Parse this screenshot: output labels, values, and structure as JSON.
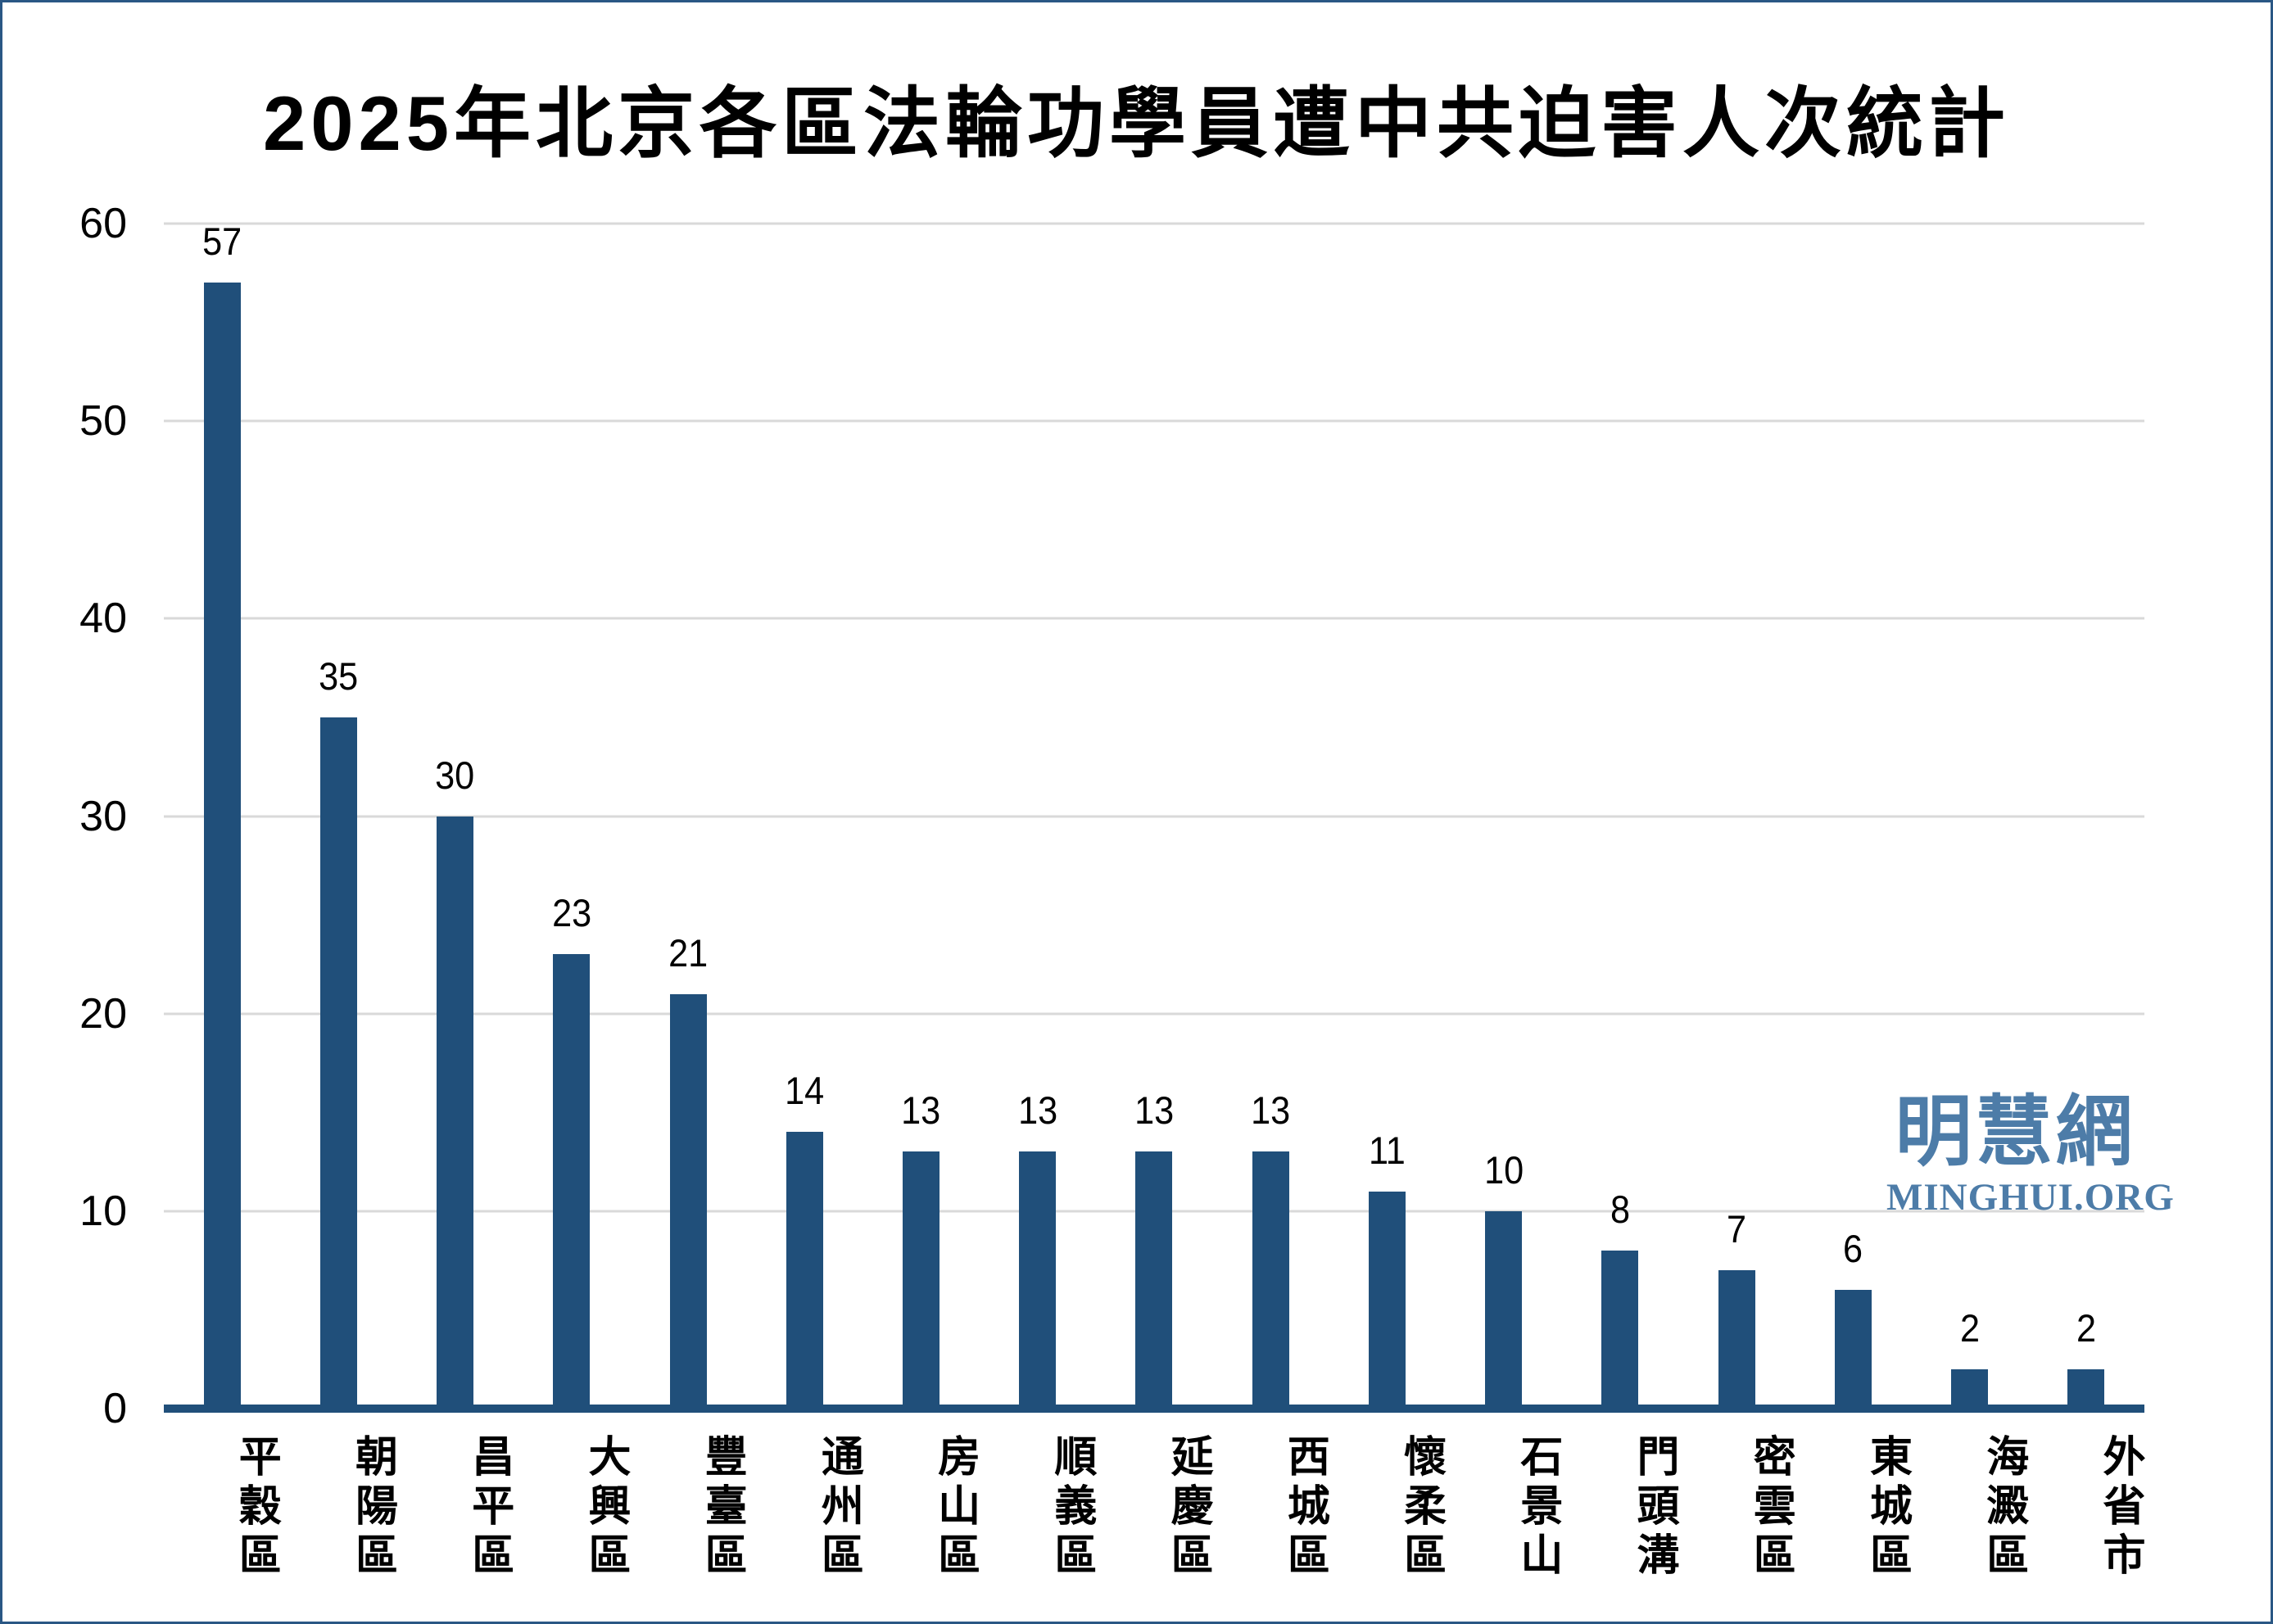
{
  "chart_data": {
    "type": "bar",
    "title": "2025年北京各區法輪功學員遭中共迫害人次統計",
    "categories": [
      "平穀區",
      "朝陽區",
      "昌平區",
      "大興區",
      "豐臺區",
      "通州區",
      "房山區",
      "順義區",
      "延慶區",
      "西城區",
      "懷柔區",
      "石景山",
      "門頭溝",
      "密雲區",
      "東城區",
      "海澱區",
      "外省市"
    ],
    "values": [
      57,
      35,
      30,
      23,
      21,
      14,
      13,
      13,
      13,
      13,
      11,
      10,
      8,
      7,
      6,
      2,
      2
    ],
    "xlabel": "",
    "ylabel": "",
    "ylim": [
      0,
      60
    ],
    "yticks": [
      0,
      10,
      20,
      30,
      40,
      50,
      60
    ],
    "grid": "horizontal gridlines at each y tick, no vertical gridlines",
    "legend_position": "none",
    "data_labels": "value shown above each bar",
    "x_label_orientation": "vertical stacked characters"
  },
  "colors": {
    "bar": "#204F7A",
    "axis_line": "#204F7A",
    "gridline": "#D9D9D9",
    "text": "#000000",
    "watermark": "#4D7CA8",
    "page_border": "#2A5784",
    "background": "#FFFFFF"
  },
  "watermark": {
    "site_name_cjk": "明慧網",
    "site_name_latin": "MINGHUI.ORG"
  }
}
